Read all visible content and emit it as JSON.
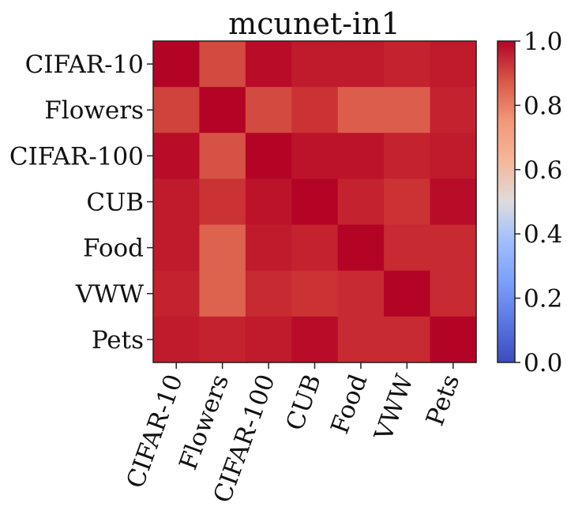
{
  "chart_data": {
    "type": "heatmap",
    "title": "mcunet-in1",
    "rows": [
      "CIFAR-10",
      "Flowers",
      "CIFAR-100",
      "CUB",
      "Food",
      "VWW",
      "Pets"
    ],
    "cols": [
      "CIFAR-10",
      "Flowers",
      "CIFAR-100",
      "CUB",
      "Food",
      "VWW",
      "Pets"
    ],
    "values": [
      [
        1.0,
        0.91,
        0.99,
        0.97,
        0.97,
        0.96,
        0.97
      ],
      [
        0.92,
        1.0,
        0.91,
        0.94,
        0.88,
        0.88,
        0.96
      ],
      [
        0.99,
        0.9,
        1.0,
        0.98,
        0.98,
        0.96,
        0.97
      ],
      [
        0.97,
        0.94,
        0.98,
        1.0,
        0.96,
        0.94,
        0.99
      ],
      [
        0.97,
        0.87,
        0.97,
        0.96,
        1.0,
        0.95,
        0.95
      ],
      [
        0.96,
        0.87,
        0.95,
        0.94,
        0.95,
        1.0,
        0.95
      ],
      [
        0.97,
        0.96,
        0.97,
        0.99,
        0.95,
        0.95,
        1.0
      ]
    ],
    "colorbar": {
      "min": 0.0,
      "max": 1.0,
      "ticks": [
        "0.0",
        "0.2",
        "0.4",
        "0.6",
        "0.8",
        "1.0"
      ],
      "colormap": "coolwarm"
    },
    "xlabel": "",
    "ylabel": ""
  }
}
